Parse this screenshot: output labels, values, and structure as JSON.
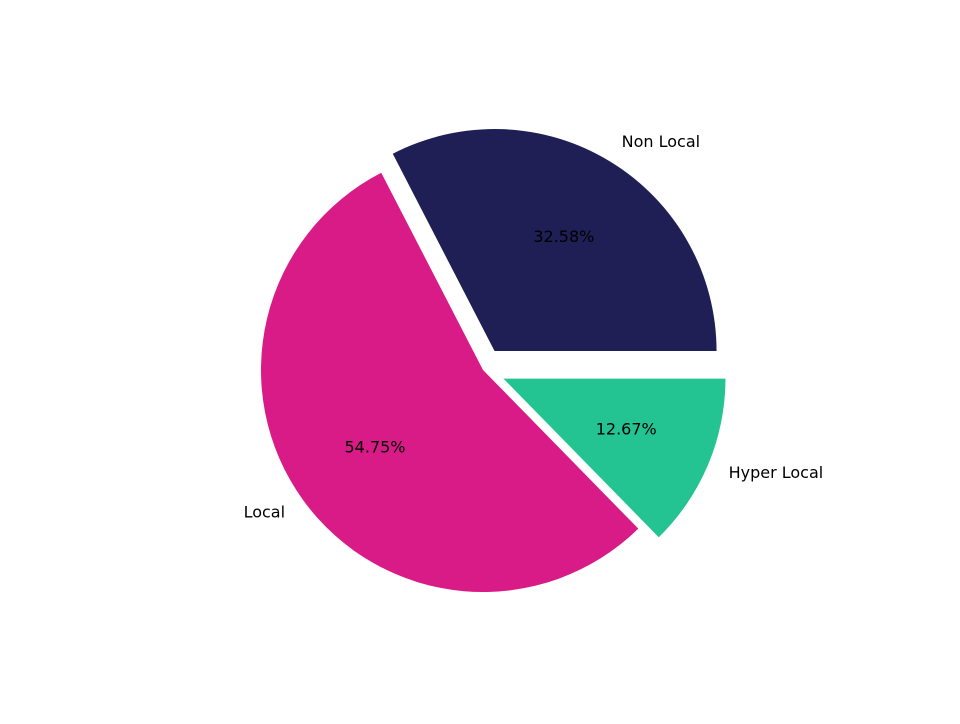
{
  "chart_data": {
    "type": "pie",
    "categories": [
      "Non Local",
      "Local",
      "Hyper Local"
    ],
    "values": [
      32.58,
      54.75,
      12.67
    ],
    "value_labels": [
      "32.58%",
      "54.75%",
      "12.67%"
    ],
    "colors": [
      "#1f1f55",
      "#d81b87",
      "#23c491"
    ]
  }
}
